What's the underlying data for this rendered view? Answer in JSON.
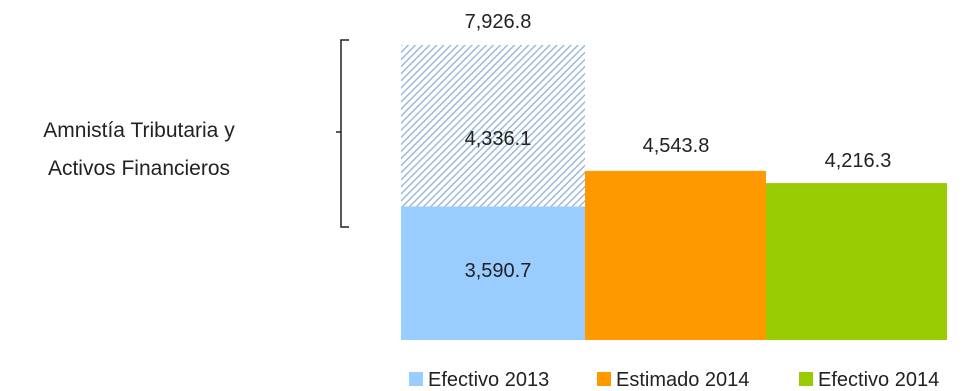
{
  "chart_data": {
    "type": "bar",
    "categories": [
      "Efectivo 2013",
      "Estimado 2014",
      "Efectivo 2014"
    ],
    "series": [
      {
        "name": "Efectivo 2013",
        "values": [
          3590.7,
          null,
          null
        ]
      },
      {
        "name": "Estimado 2014",
        "values": [
          null,
          4543.8,
          null
        ]
      },
      {
        "name": "Efectivo 2014",
        "values": [
          null,
          null,
          4216.3
        ]
      },
      {
        "name": "",
        "values": [
          4336.1,
          null,
          null
        ]
      }
    ],
    "data_labels": {
      "efectivo_2013_base": "3,590.7",
      "efectivo_2013_extra": "4,336.1",
      "efectivo_2013_total": "7,926.8",
      "estimado_2014": "4,543.8",
      "efectivo_2014": "4,216.3"
    },
    "bracket_annotation": [
      "Amnistía Tributaria y",
      "Activos Financieros"
    ],
    "legend": [
      "Efectivo 2013",
      "Estimado 2014",
      "Efectivo 2014"
    ],
    "legend_position": "bottom",
    "ylim": [
      0,
      7926.8
    ],
    "grid": false,
    "colors": {
      "efectivo_2013": "#99ccff",
      "estimado_2014": "#ff9900",
      "efectivo_2014": "#99cc00",
      "hatch_line": "#8fb2d6"
    }
  }
}
